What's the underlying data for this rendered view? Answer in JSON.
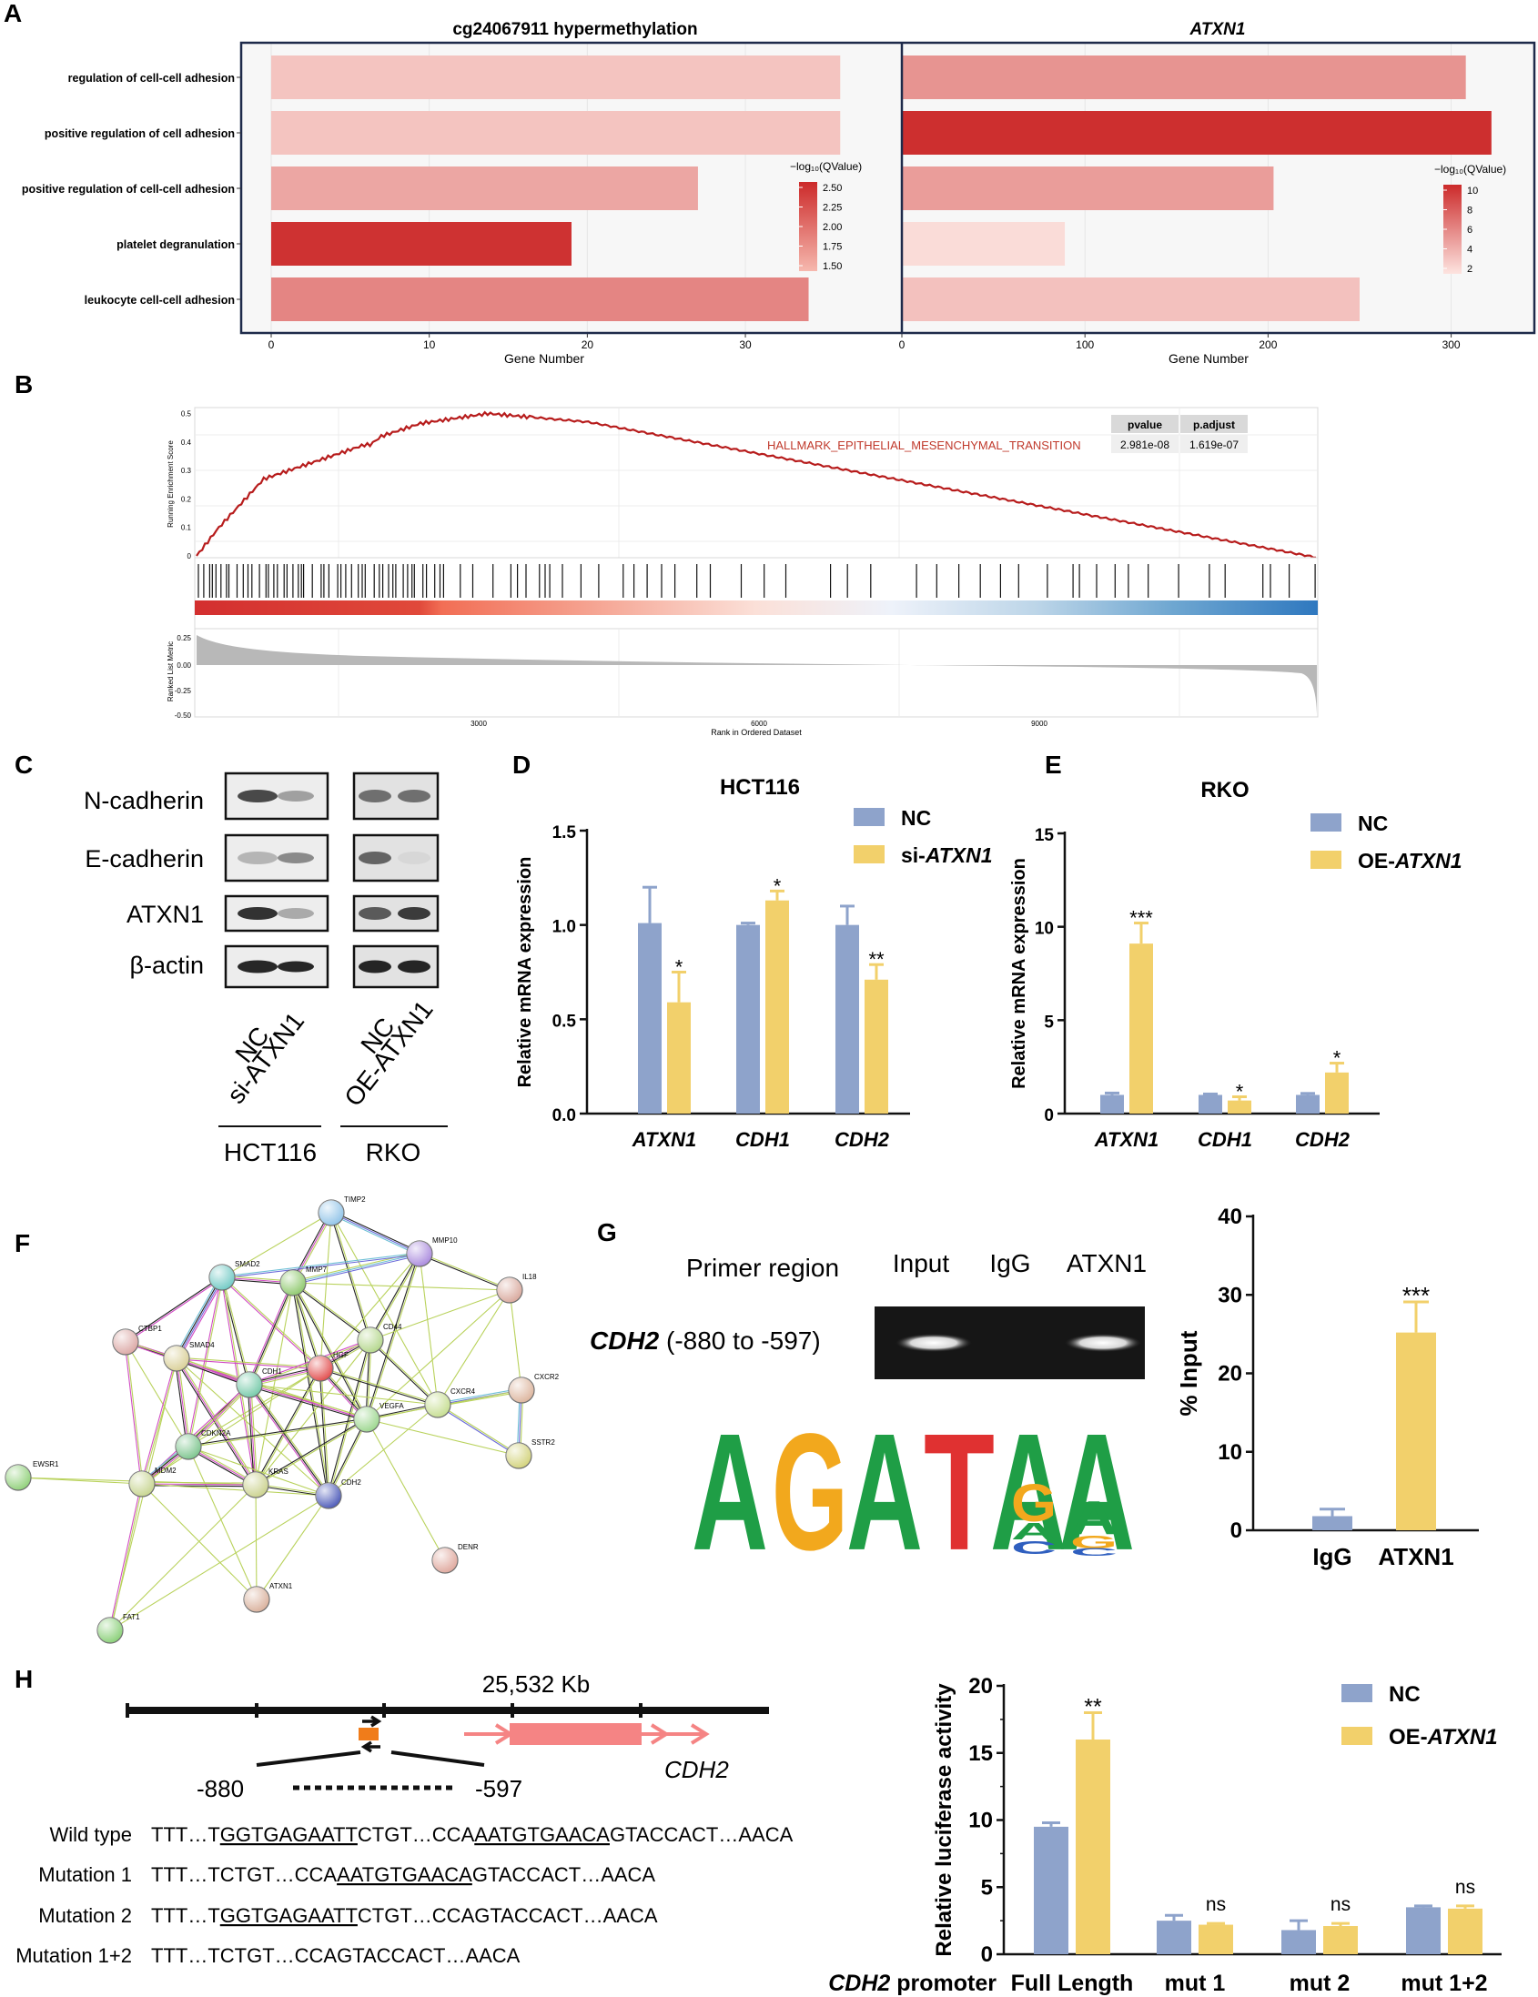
{
  "panels": {
    "A": "A",
    "B": "B",
    "C": "C",
    "D": "D",
    "E": "E",
    "F": "F",
    "G": "G",
    "H": "H"
  },
  "colors": {
    "nc": "#8ea3cb",
    "treat": "#f2d06b",
    "red_dark": "#cc2a2a",
    "red_light": "#fbe0dc",
    "gsea_curve": "#b71c1c",
    "blue": "#2f78bf"
  },
  "chart_data": [
    {
      "type": "bar",
      "panel": "A-left",
      "title": "cg24067911 hypermethylation",
      "orientation": "horizontal",
      "categories": [
        "regulation of cell-cell adhesion",
        "positive regulation of cell adhesion",
        "positive regulation of cell-cell adhesion",
        "platelet degranulation",
        "leukocyte cell-cell adhesion"
      ],
      "values": [
        36,
        36,
        27,
        19,
        34
      ],
      "qvalue": [
        1.62,
        1.62,
        1.8,
        2.5,
        2.0
      ],
      "xlabel": "Gene Number",
      "xlim": [
        0,
        38
      ],
      "xticks": [
        "0",
        "10",
        "20",
        "30"
      ],
      "legend": {
        "title": "−log₁₀(QValue)",
        "ticks": [
          "2.50",
          "2.25",
          "2.00",
          "1.75",
          "1.50"
        ],
        "min": 1.45,
        "max": 2.55
      }
    },
    {
      "type": "bar",
      "panel": "A-right",
      "title": "ATXN1",
      "orientation": "horizontal",
      "categories": [
        "regulation of cell-cell adhesion",
        "positive regulation of cell adhesion",
        "positive regulation of cell-cell adhesion",
        "platelet degranulation",
        "leukocyte cell-cell adhesion"
      ],
      "values": [
        308,
        322,
        203,
        89,
        250
      ],
      "qvalue": [
        5.5,
        11.0,
        5.0,
        1.5,
        3.0
      ],
      "xlabel": "Gene Number",
      "xlim": [
        0,
        335
      ],
      "xticks": [
        "0",
        "100",
        "200",
        "300"
      ],
      "legend": {
        "title": "−log₁₀(QValue)",
        "ticks": [
          "10",
          "8",
          "6",
          "4",
          "2"
        ],
        "min": 1.3,
        "max": 11.3
      }
    },
    {
      "type": "line",
      "panel": "B",
      "gene_set": "HALLMARK_EPITHELIAL_MESENCHYMAL_TRANSITION",
      "stats_header": [
        "pvalue",
        "p.adjust"
      ],
      "stats_values": [
        "2.981e-08",
        "1.619e-07"
      ],
      "ylabel_top": "Running Enrichment Score",
      "yticks_top": [
        "0.5",
        "0.4",
        "0.3",
        "0.2",
        "0.1",
        "0"
      ],
      "ylabel_bottom": "Ranked List Metric",
      "yticks_bottom": [
        "0.25",
        "0.00",
        "-0.25",
        "-0.50"
      ],
      "xlabel": "Rank in Ordered Dataset",
      "xticks": [
        "3000",
        "6000",
        "9000"
      ]
    },
    {
      "type": "bar",
      "panel": "D",
      "title": "HCT116",
      "categories": [
        "ATXN1",
        "CDH1",
        "CDH2"
      ],
      "series": [
        {
          "name": "NC",
          "values": [
            1.01,
            1.0,
            1.0
          ],
          "err": [
            0.19,
            0.01,
            0.1
          ]
        },
        {
          "name": "si-ATXN1",
          "values": [
            0.59,
            1.13,
            0.71
          ],
          "err": [
            0.16,
            0.05,
            0.08
          ]
        }
      ],
      "significance": [
        "*",
        "*",
        "**"
      ],
      "ylabel": "Relative mRNA expression",
      "ylim": [
        0,
        1.5
      ],
      "yticks": [
        "0.0",
        "0.5",
        "1.0",
        "1.5"
      ]
    },
    {
      "type": "bar",
      "panel": "E",
      "title": "RKO",
      "categories": [
        "ATXN1",
        "CDH1",
        "CDH2"
      ],
      "series": [
        {
          "name": "NC",
          "values": [
            1.0,
            1.0,
            1.0
          ],
          "err": [
            0.1,
            0.05,
            0.08
          ]
        },
        {
          "name": "OE-ATXN1",
          "values": [
            9.1,
            0.7,
            2.2
          ],
          "err": [
            1.1,
            0.2,
            0.5
          ]
        }
      ],
      "significance": [
        "***",
        "*",
        "*"
      ],
      "ylabel": "Relative mRNA expression",
      "ylim": [
        0,
        15
      ],
      "yticks": [
        "0",
        "5",
        "10",
        "15"
      ]
    },
    {
      "type": "bar",
      "panel": "G",
      "categories": [
        "IgG",
        "ATXN1"
      ],
      "values": [
        1.8,
        25.2
      ],
      "err": [
        0.9,
        3.9
      ],
      "significance": [
        "",
        "***"
      ],
      "ylabel": "% Input",
      "ylim": [
        0,
        40
      ],
      "yticks": [
        "0",
        "10",
        "20",
        "30",
        "40"
      ]
    },
    {
      "type": "bar",
      "panel": "H",
      "categories": [
        "Full Length",
        "mut 1",
        "mut 2",
        "mut 1+2"
      ],
      "category_prefix": "CDH2 promoter",
      "series": [
        {
          "name": "NC",
          "values": [
            9.5,
            2.5,
            1.8,
            3.5
          ],
          "err": [
            0.3,
            0.4,
            0.7,
            0.1
          ]
        },
        {
          "name": "OE-ATXN1",
          "values": [
            16.0,
            2.2,
            2.1,
            3.4
          ],
          "err": [
            2.0,
            0.1,
            0.2,
            0.2
          ]
        }
      ],
      "significance": [
        "**",
        "ns",
        "ns",
        "ns"
      ],
      "ylabel": "Relative luciferase activity",
      "ylim": [
        0,
        20
      ],
      "yticks": [
        "0",
        "5",
        "10",
        "15",
        "20"
      ]
    }
  ],
  "panelC": {
    "proteins": [
      "N-cadherin",
      "E-cadherin",
      "ATXN1",
      "β-actin"
    ],
    "lanes_left": [
      "NC",
      "si-ATXN1"
    ],
    "lanes_right": [
      "NC",
      "OE-ATXN1"
    ],
    "cells": [
      "HCT116",
      "RKO"
    ]
  },
  "panelF": {
    "nodes": [
      "TIMP2",
      "MMP10",
      "SMAD2",
      "MMP7",
      "IL18",
      "CTBP1",
      "SMAD4",
      "CD44",
      "HGF",
      "CDH1",
      "CXCR2",
      "CXCR4",
      "VEGFA",
      "CDKN2A",
      "SSTR2",
      "EWSR1",
      "MDM2",
      "KRAS",
      "CDH2",
      "DENR",
      "ATXN1",
      "FAT1"
    ]
  },
  "panelG": {
    "header": [
      "Primer region",
      "Input",
      "IgG",
      "ATXN1"
    ],
    "region_gene": "CDH2",
    "region_range": "(-880 to -597)",
    "motif": [
      "A",
      "G",
      "A",
      "T",
      "A",
      "A",
      "G",
      "A"
    ]
  },
  "panelH": {
    "scale": "25,532 Kb",
    "gene": "CDH2",
    "left_pos": "-880",
    "right_pos": "-597",
    "sequences": [
      {
        "label": "Wild type",
        "parts": [
          "TTT…T",
          "GGTGAGAATT",
          "CTGT…CCA",
          "AATGTGAACA",
          "GTACCACT…AACA"
        ]
      },
      {
        "label": "Mutation 1",
        "parts": [
          "TTT…TCTGT…CCA",
          "AATGTGAACA",
          "GTACCACT…AACA"
        ]
      },
      {
        "label": "Mutation 2",
        "parts": [
          "TTT…T",
          "GGTGAGAATT",
          "CTGT…CCAGTACCACT…AACA"
        ]
      },
      {
        "label": "Mutation 1+2",
        "parts": [
          "TTT…TCTGT…CCAGTACCACT…AACA"
        ]
      }
    ]
  }
}
